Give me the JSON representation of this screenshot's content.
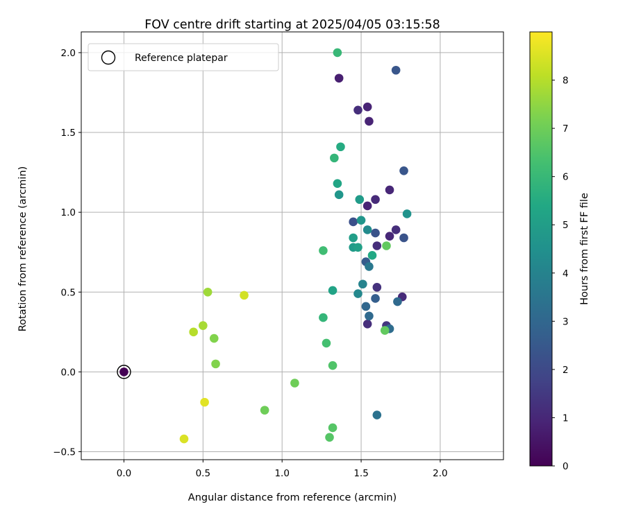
{
  "chart_data": {
    "type": "scatter",
    "title": "FOV centre drift starting at 2025/04/05 03:15:58",
    "xlabel": "Angular distance from reference (arcmin)",
    "ylabel": "Rotation from reference (arcmin)",
    "xlim": [
      -0.27,
      2.4
    ],
    "ylim": [
      -0.55,
      2.13
    ],
    "xticks": [
      "0.0",
      "0.5",
      "1.0",
      "1.5",
      "2.0"
    ],
    "yticks": [
      "−0.5",
      "0.0",
      "0.5",
      "1.0",
      "1.5",
      "2.0"
    ],
    "grid": true,
    "legend": {
      "position": "top-left",
      "label": "Reference platepar"
    },
    "colorbar": {
      "label": "Hours from first FF file",
      "range": [
        0,
        9
      ],
      "ticks": [
        "0",
        "1",
        "2",
        "3",
        "4",
        "5",
        "6",
        "7",
        "8"
      ],
      "colormap": "viridis"
    },
    "reference_point": {
      "x": 0.0,
      "y": 0.0,
      "hours": 0.0
    },
    "points": [
      {
        "x": 0.0,
        "y": 0.0,
        "hours": 0.0
      },
      {
        "x": 1.36,
        "y": 1.84,
        "hours": 0.8
      },
      {
        "x": 1.54,
        "y": 1.66,
        "hours": 0.9
      },
      {
        "x": 1.48,
        "y": 1.64,
        "hours": 1.2
      },
      {
        "x": 1.55,
        "y": 1.57,
        "hours": 0.9
      },
      {
        "x": 1.68,
        "y": 1.14,
        "hours": 1.0
      },
      {
        "x": 1.59,
        "y": 1.08,
        "hours": 1.1
      },
      {
        "x": 1.54,
        "y": 1.04,
        "hours": 0.9
      },
      {
        "x": 1.72,
        "y": 0.89,
        "hours": 1.2
      },
      {
        "x": 1.68,
        "y": 0.85,
        "hours": 1.0
      },
      {
        "x": 1.6,
        "y": 0.79,
        "hours": 1.2
      },
      {
        "x": 1.6,
        "y": 0.53,
        "hours": 1.3
      },
      {
        "x": 1.76,
        "y": 0.47,
        "hours": 1.1
      },
      {
        "x": 1.54,
        "y": 0.3,
        "hours": 1.2
      },
      {
        "x": 1.66,
        "y": 0.29,
        "hours": 1.4
      },
      {
        "x": 1.72,
        "y": 1.89,
        "hours": 2.4
      },
      {
        "x": 1.77,
        "y": 1.26,
        "hours": 2.4
      },
      {
        "x": 1.45,
        "y": 0.94,
        "hours": 2.2
      },
      {
        "x": 1.59,
        "y": 0.87,
        "hours": 2.3
      },
      {
        "x": 1.77,
        "y": 0.84,
        "hours": 2.3
      },
      {
        "x": 1.53,
        "y": 0.69,
        "hours": 2.6
      },
      {
        "x": 1.59,
        "y": 0.46,
        "hours": 2.7
      },
      {
        "x": 1.73,
        "y": 0.44,
        "hours": 3.1
      },
      {
        "x": 1.53,
        "y": 0.41,
        "hours": 3.0
      },
      {
        "x": 1.55,
        "y": 0.35,
        "hours": 3.1
      },
      {
        "x": 1.68,
        "y": 0.27,
        "hours": 3.2
      },
      {
        "x": 1.6,
        "y": -0.27,
        "hours": 3.4
      },
      {
        "x": 1.55,
        "y": 0.66,
        "hours": 3.6
      },
      {
        "x": 1.51,
        "y": 0.55,
        "hours": 4.0
      },
      {
        "x": 1.48,
        "y": 0.49,
        "hours": 4.2
      },
      {
        "x": 1.54,
        "y": 0.89,
        "hours": 4.3
      },
      {
        "x": 1.79,
        "y": 0.99,
        "hours": 4.6
      },
      {
        "x": 1.5,
        "y": 0.95,
        "hours": 4.7
      },
      {
        "x": 1.36,
        "y": 1.11,
        "hours": 4.7
      },
      {
        "x": 1.49,
        "y": 1.08,
        "hours": 4.9
      },
      {
        "x": 1.45,
        "y": 0.78,
        "hours": 4.9
      },
      {
        "x": 1.45,
        "y": 0.84,
        "hours": 5.0
      },
      {
        "x": 1.48,
        "y": 0.78,
        "hours": 5.1
      },
      {
        "x": 1.32,
        "y": 0.51,
        "hours": 5.2
      },
      {
        "x": 1.35,
        "y": 1.18,
        "hours": 5.3
      },
      {
        "x": 1.57,
        "y": 0.73,
        "hours": 5.4
      },
      {
        "x": 1.37,
        "y": 1.41,
        "hours": 5.5
      },
      {
        "x": 1.33,
        "y": 1.34,
        "hours": 5.9
      },
      {
        "x": 1.26,
        "y": 0.34,
        "hours": 5.9
      },
      {
        "x": 1.35,
        "y": 2.0,
        "hours": 6.0
      },
      {
        "x": 1.26,
        "y": 0.76,
        "hours": 6.2
      },
      {
        "x": 1.28,
        "y": 0.18,
        "hours": 6.3
      },
      {
        "x": 1.32,
        "y": 0.04,
        "hours": 6.5
      },
      {
        "x": 1.32,
        "y": -0.35,
        "hours": 6.6
      },
      {
        "x": 1.3,
        "y": -0.41,
        "hours": 6.6
      },
      {
        "x": 1.65,
        "y": 0.26,
        "hours": 6.8
      },
      {
        "x": 1.66,
        "y": 0.79,
        "hours": 6.8
      },
      {
        "x": 1.08,
        "y": -0.07,
        "hours": 7.0
      },
      {
        "x": 0.89,
        "y": -0.24,
        "hours": 7.0
      },
      {
        "x": 0.58,
        "y": 0.05,
        "hours": 7.3
      },
      {
        "x": 0.57,
        "y": 0.21,
        "hours": 7.3
      },
      {
        "x": 0.53,
        "y": 0.5,
        "hours": 7.7
      },
      {
        "x": 0.5,
        "y": 0.29,
        "hours": 7.8
      },
      {
        "x": 0.44,
        "y": 0.25,
        "hours": 8.0
      },
      {
        "x": 0.76,
        "y": 0.48,
        "hours": 8.4
      },
      {
        "x": 0.51,
        "y": -0.19,
        "hours": 8.6
      },
      {
        "x": 0.38,
        "y": -0.42,
        "hours": 8.5
      }
    ]
  }
}
